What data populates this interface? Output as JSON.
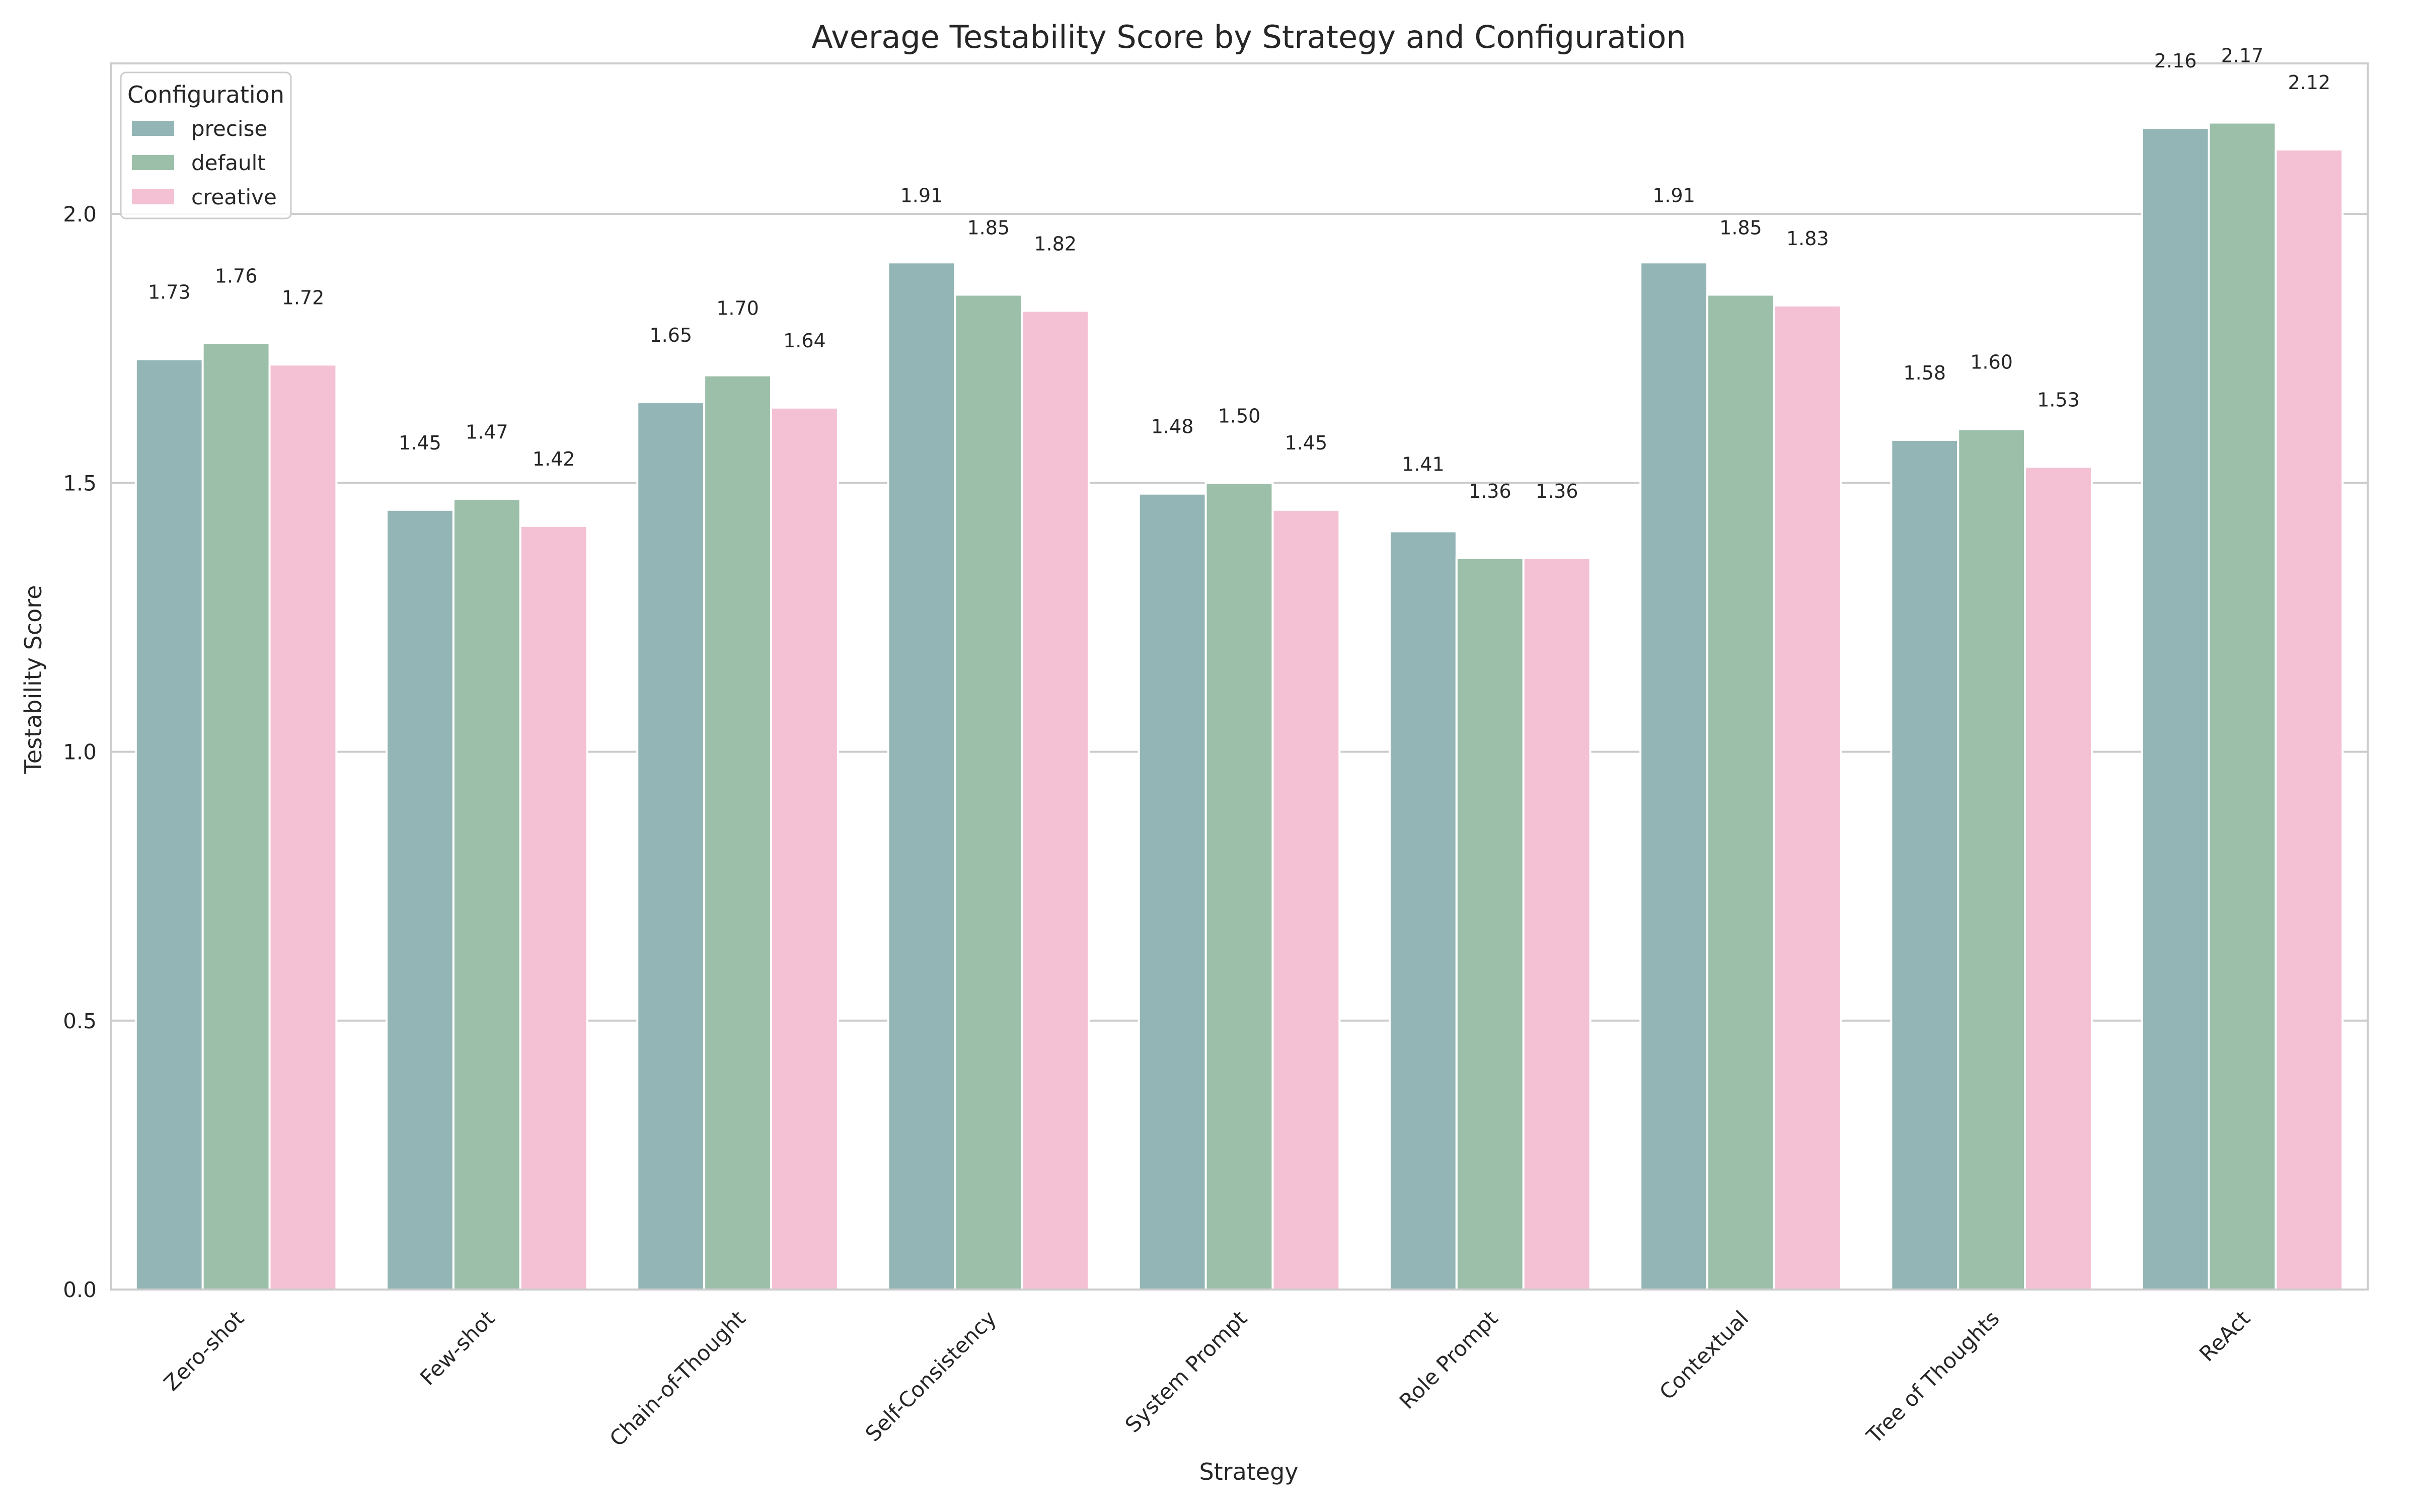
{
  "chart_data": {
    "type": "bar",
    "title": "Average Testability Score by Strategy and Configuration",
    "xlabel": "Strategy",
    "ylabel": "Testability Score",
    "ylim": [
      0,
      2.28
    ],
    "yticks": [
      0.0,
      0.5,
      1.0,
      1.5,
      2.0
    ],
    "ytick_labels": [
      "0.0",
      "0.5",
      "1.0",
      "1.5",
      "2.0"
    ],
    "grid": "horizontal",
    "legend": {
      "title": "Configuration",
      "placement": "top-left"
    },
    "categories": [
      "Zero-shot",
      "Few-shot",
      "Chain-of-Thought",
      "Self-Consistency",
      "System Prompt",
      "Role Prompt",
      "Contextual",
      "Tree of Thoughts",
      "ReAct"
    ],
    "series": [
      {
        "name": "precise",
        "color": "#93b5b6",
        "values": [
          1.73,
          1.45,
          1.65,
          1.91,
          1.48,
          1.41,
          1.91,
          1.58,
          2.16
        ],
        "labels": [
          "1.73",
          "1.45",
          "1.65",
          "1.91",
          "1.48",
          "1.41",
          "1.91",
          "1.58",
          "2.16"
        ]
      },
      {
        "name": "default",
        "color": "#9bbfa9",
        "values": [
          1.76,
          1.47,
          1.7,
          1.85,
          1.5,
          1.36,
          1.85,
          1.6,
          2.17
        ],
        "labels": [
          "1.76",
          "1.47",
          "1.70",
          "1.85",
          "1.50",
          "1.36",
          "1.85",
          "1.60",
          "2.17"
        ]
      },
      {
        "name": "creative",
        "color": "#f4c1d4",
        "values": [
          1.72,
          1.42,
          1.64,
          1.82,
          1.45,
          1.36,
          1.83,
          1.53,
          2.12
        ],
        "labels": [
          "1.72",
          "1.42",
          "1.64",
          "1.82",
          "1.45",
          "1.36",
          "1.83",
          "1.53",
          "2.12"
        ]
      }
    ]
  }
}
